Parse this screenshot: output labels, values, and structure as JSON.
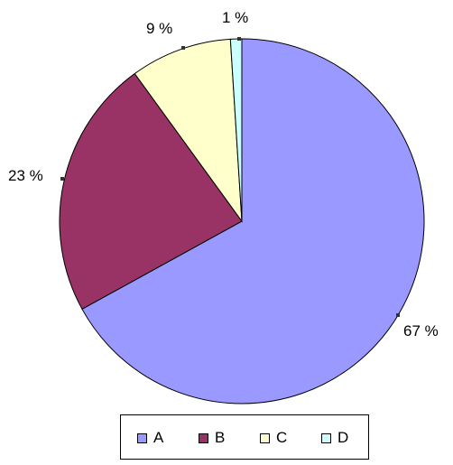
{
  "chart_data": {
    "type": "pie",
    "categories": [
      "A",
      "B",
      "C",
      "D"
    ],
    "values": [
      67,
      23,
      9,
      1
    ],
    "data_labels": [
      "67 %",
      "23 %",
      "9 %",
      "1 %"
    ],
    "colors": [
      "#9999ff",
      "#993366",
      "#ffffcc",
      "#ccffff"
    ],
    "start_angle_deg": 0,
    "direction": "clockwise",
    "legend": {
      "placement": "bottom",
      "entries": [
        "A",
        "B",
        "C",
        "D"
      ]
    }
  }
}
